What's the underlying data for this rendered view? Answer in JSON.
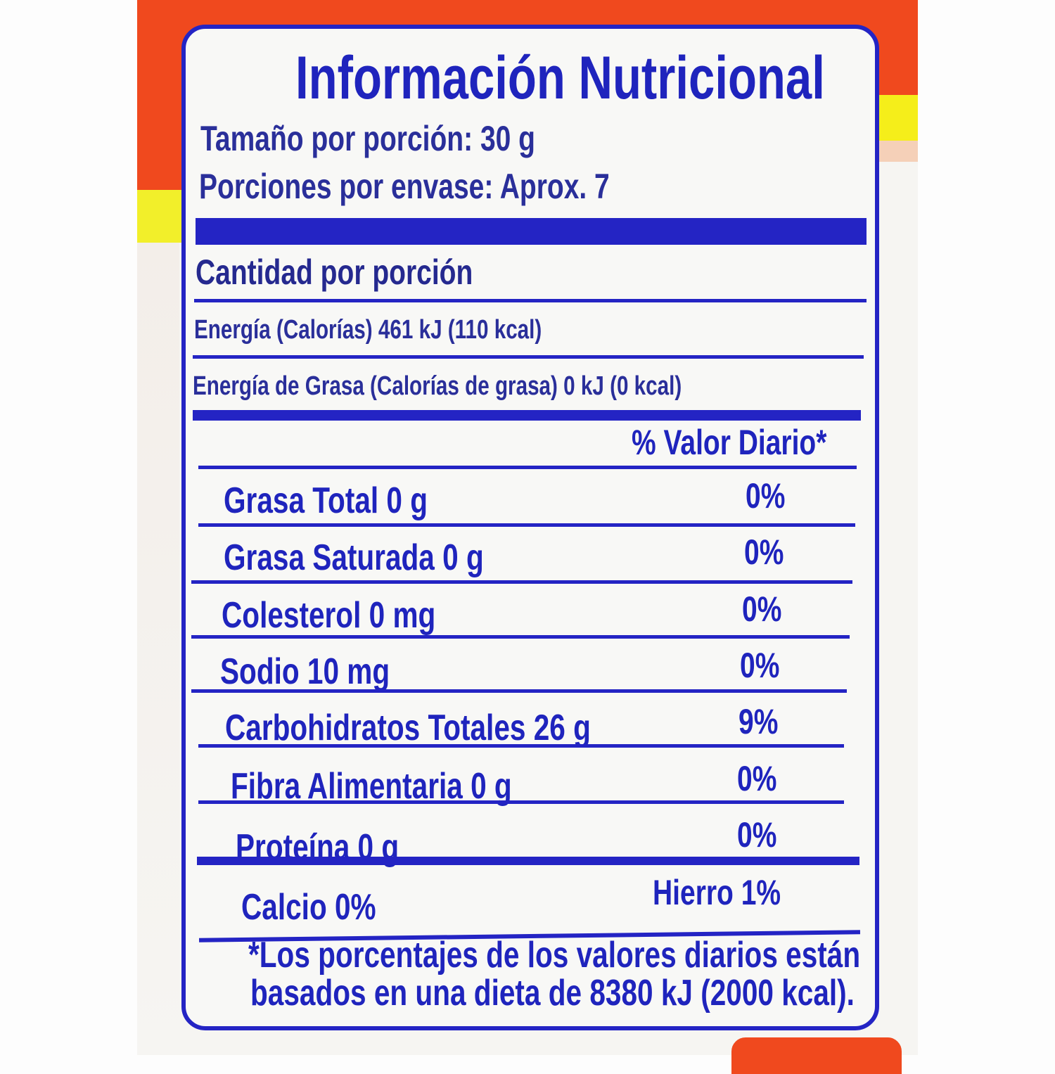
{
  "label": {
    "title": "Información Nutricional",
    "serving_size": "Tamaño por porción: 30 g",
    "servings_per_container": "Porciones por envase: Aprox. 7",
    "amount_per_serving": "Cantidad por porción",
    "energy": "Energía (Calorías) 461 kJ (110 kcal)",
    "energy_from_fat": "Energía de Grasa (Calorías de grasa) 0 kJ (0 kcal)",
    "daily_value_header": "% Valor Diario*",
    "nutrients": [
      {
        "name": "Grasa Total  0 g",
        "dv": "0%"
      },
      {
        "name": "Grasa Saturada  0 g",
        "dv": "0%"
      },
      {
        "name": "Colesterol  0 mg",
        "dv": "0%"
      },
      {
        "name": "Sodio  10 mg",
        "dv": "0%"
      },
      {
        "name": "Carbohidratos Totales  26 g",
        "dv": "9%"
      },
      {
        "name": "Fibra Alimentaria 0 g",
        "dv": "0%"
      },
      {
        "name": "Proteína 0 g",
        "dv": "0%"
      }
    ],
    "calcium": "Calcio 0%",
    "iron": "Hierro 1%",
    "footnote_line1": "*Los porcentajes de los valores diarios están",
    "footnote_line2": "basados en una dieta de 8380 kJ (2000 kcal)."
  },
  "colors": {
    "text_blue": "#1f24bd",
    "bag_orange": "#f0491e",
    "bag_yellow": "#f5ee1a"
  }
}
